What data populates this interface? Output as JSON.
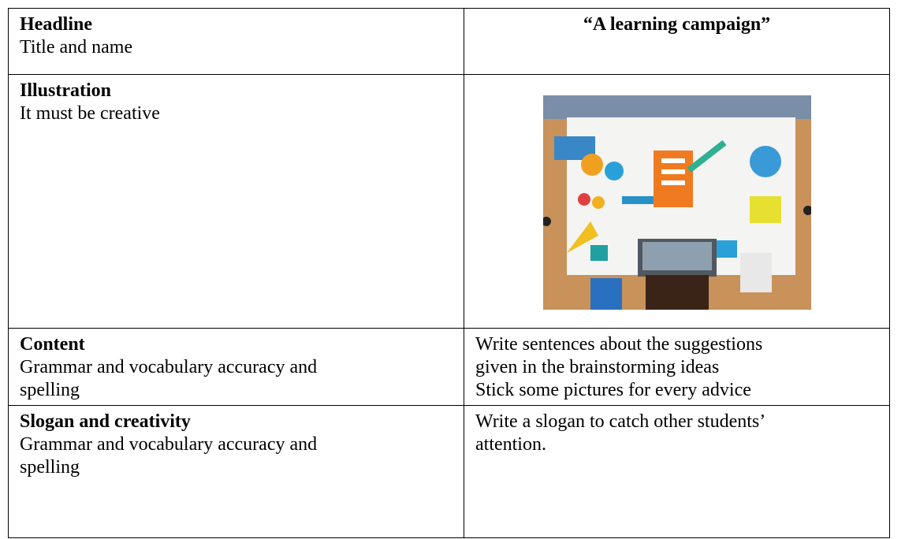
{
  "table": {
    "rows": [
      {
        "label": "Headline",
        "description": [
          "Title and name"
        ],
        "content": [
          "“A learning campaign”"
        ]
      },
      {
        "label": "Illustration",
        "description": [
          "It must be creative"
        ]
      },
      {
        "label": "Content",
        "description": [
          "Grammar and vocabulary accuracy and",
          "spelling"
        ],
        "content": [
          "Write sentences about the suggestions",
          "given in the brainstorming ideas",
          "Stick some pictures for every advice"
        ]
      },
      {
        "label": "Slogan and creativity",
        "description": [
          "Grammar and vocabulary accuracy and",
          "spelling"
        ],
        "content": [
          "Write a slogan to catch other students’",
          "attention."
        ]
      }
    ]
  }
}
